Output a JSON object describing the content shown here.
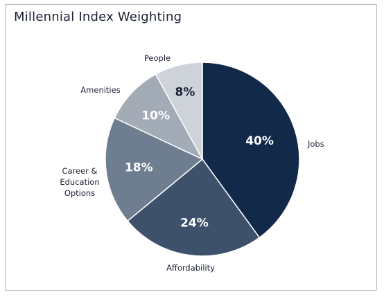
{
  "chart_data": {
    "type": "pie",
    "title": "Millennial Index Weighting",
    "start": "12 o'clock, clockwise",
    "slices": [
      {
        "label": "Jobs",
        "value": 40,
        "display": "40%",
        "color": "#12294a",
        "label_lines": [
          "Jobs"
        ]
      },
      {
        "label": "Affordability",
        "value": 24,
        "display": "24%",
        "color": "#3e516b",
        "label_lines": [
          "Affordability"
        ]
      },
      {
        "label": "Career & Education Options",
        "value": 18,
        "display": "18%",
        "color": "#6e7d8f",
        "label_lines": [
          "Career &",
          "Education",
          "Options"
        ]
      },
      {
        "label": "Amenities",
        "value": 10,
        "display": "10%",
        "color": "#a3abb6",
        "label_lines": [
          "Amenities"
        ]
      },
      {
        "label": "People",
        "value": 8,
        "display": "8%",
        "color": "#ced3da",
        "label_lines": [
          "People"
        ]
      }
    ]
  }
}
